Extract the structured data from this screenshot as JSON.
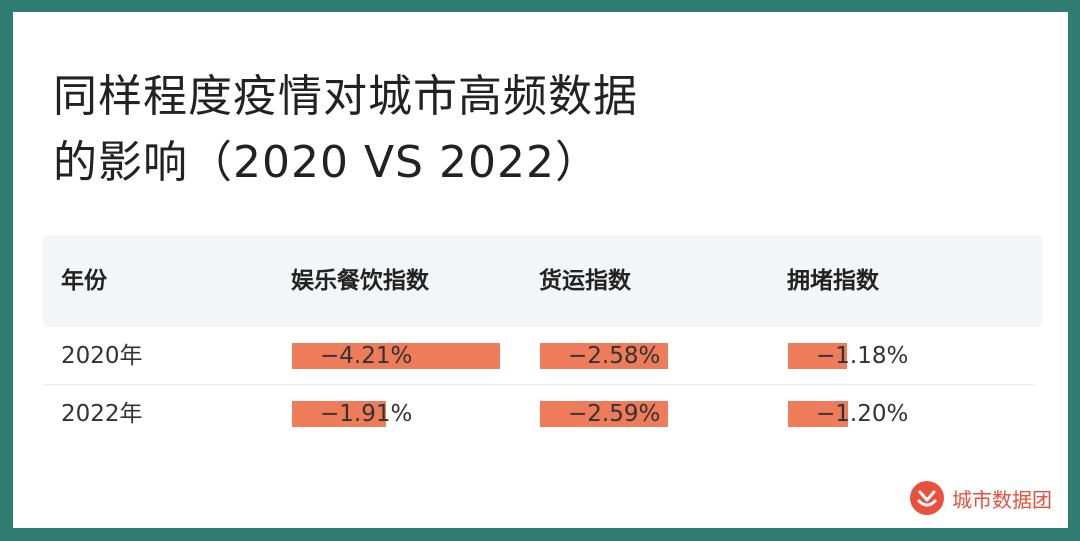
{
  "title_line1": "同样程度疫情对城市高频数据",
  "title_line2": "的影响（2020 VS 2022）",
  "columns": [
    "年份",
    "娱乐餐饮指数",
    "货运指数",
    "拥堵指数"
  ],
  "rows": [
    {
      "year": "2020年",
      "entertainment": "−4.21%",
      "freight": "−2.58%",
      "congestion": "−1.18%",
      "entertainment_value": -4.21,
      "freight_value": -2.58,
      "congestion_value": -1.18
    },
    {
      "year": "2022年",
      "entertainment": "−1.91%",
      "freight": "−2.59%",
      "congestion": "−1.20%",
      "entertainment_value": -1.91,
      "freight_value": -2.59,
      "congestion_value": -1.2
    }
  ],
  "brand": {
    "name": "城市数据团",
    "icon": "city-data-logo-icon"
  },
  "colors": {
    "background": "#2f7d70",
    "bar": "#ee7b5a",
    "brand": "#e8513c",
    "header_bg": "#f4f5f7"
  }
}
